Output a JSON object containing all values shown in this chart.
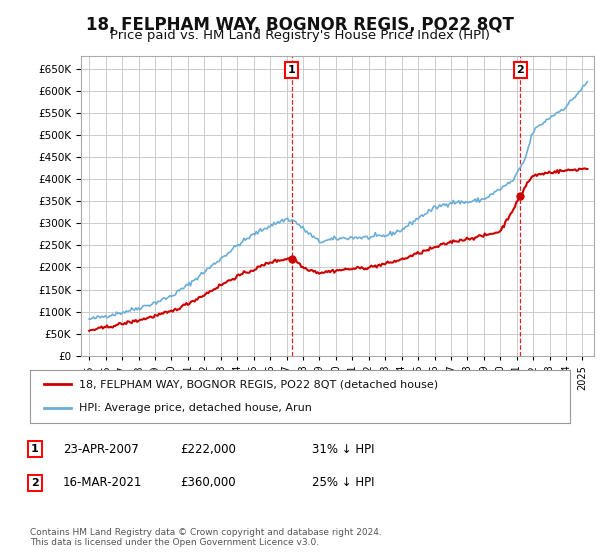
{
  "title": "18, FELPHAM WAY, BOGNOR REGIS, PO22 8QT",
  "subtitle": "Price paid vs. HM Land Registry's House Price Index (HPI)",
  "title_fontsize": 12,
  "subtitle_fontsize": 9.5,
  "yticks": [
    0,
    50000,
    100000,
    150000,
    200000,
    250000,
    300000,
    350000,
    400000,
    450000,
    500000,
    550000,
    600000,
    650000
  ],
  "ylim": [
    0,
    680000
  ],
  "xlim": [
    1994.5,
    2025.7
  ],
  "background_color": "#ffffff",
  "grid_color": "#cccccc",
  "hpi_color": "#6baed6",
  "price_color": "#cc0000",
  "legend_label1": "18, FELPHAM WAY, BOGNOR REGIS, PO22 8QT (detached house)",
  "legend_label2": "HPI: Average price, detached house, Arun",
  "note1_num": "1",
  "note1_date": "23-APR-2007",
  "note1_price": "£222,000",
  "note1_hpi": "31% ↓ HPI",
  "note2_num": "2",
  "note2_date": "16-MAR-2021",
  "note2_price": "£360,000",
  "note2_hpi": "25% ↓ HPI",
  "footer": "Contains HM Land Registry data © Crown copyright and database right 2024.\nThis data is licensed under the Open Government Licence v3.0.",
  "ann1_year": 2007.31,
  "ann2_year": 2021.21,
  "hpi_kp_x": [
    1995,
    1996,
    1997,
    1998,
    1999,
    2000,
    2001,
    2002,
    2003,
    2004,
    2005,
    2006,
    2007.0,
    2007.5,
    2008,
    2009,
    2010,
    2011,
    2012,
    2013,
    2014,
    2015,
    2016,
    2017,
    2018,
    2019,
    2020,
    2020.8,
    2021.5,
    2022,
    2023,
    2024,
    2025.3
  ],
  "hpi_kp_y": [
    82000,
    90000,
    98000,
    108000,
    120000,
    135000,
    160000,
    190000,
    220000,
    250000,
    275000,
    295000,
    310000,
    305000,
    288000,
    258000,
    265000,
    268000,
    268000,
    272000,
    285000,
    312000,
    335000,
    348000,
    348000,
    355000,
    378000,
    398000,
    445000,
    510000,
    540000,
    565000,
    620000
  ],
  "price_kp_x": [
    1995,
    1996,
    1997,
    1998,
    1999,
    2000,
    2001,
    2002,
    2003,
    2004,
    2005,
    2006,
    2007.31,
    2007.6,
    2008,
    2009,
    2010,
    2011,
    2012,
    2013,
    2014,
    2015,
    2016,
    2017,
    2018,
    2019,
    2020,
    2021.21,
    2021.6,
    2022,
    2023,
    2024,
    2025.3
  ],
  "price_kp_y": [
    57000,
    64000,
    72000,
    80000,
    90000,
    100000,
    118000,
    138000,
    160000,
    180000,
    195000,
    212000,
    222000,
    215000,
    200000,
    188000,
    193000,
    197000,
    200000,
    208000,
    218000,
    232000,
    245000,
    258000,
    265000,
    272000,
    282000,
    360000,
    390000,
    408000,
    416000,
    420000,
    425000
  ]
}
